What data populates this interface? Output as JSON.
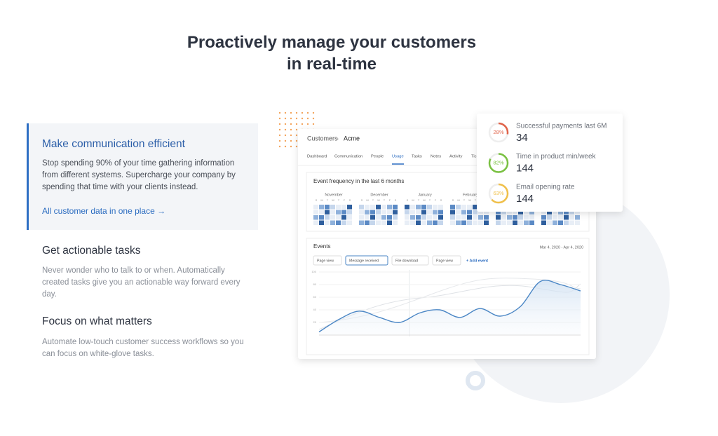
{
  "header": {
    "title_lines": [
      "Proactively manage your customers",
      "in real-time"
    ]
  },
  "features": [
    {
      "title": "Make communication efficient",
      "text": "Stop spending 90% of your time gathering information from different systems. Supercharge your company by spending that time with your clients instead.",
      "link": "All customer data in one place →"
    },
    {
      "title": "Get actionable tasks",
      "text": "Never wonder who to talk to or when. Automatically created tasks give you an actionable way forward every day."
    },
    {
      "title": "Focus on what matters",
      "text": "Automate low-touch customer success workflows so you can focus on white-glove tasks."
    }
  ],
  "dashboard": {
    "breadcrumb": [
      "Customers",
      "›",
      "Acme"
    ],
    "tabs": [
      "Dashboard",
      "Communication",
      "People",
      "Usage",
      "Tasks",
      "Notes",
      "Activity",
      "Tic"
    ],
    "heatmap": {
      "title": "Event frequency in the last 6 months",
      "months": [
        "November",
        "December",
        "January",
        "February"
      ],
      "days": [
        "S",
        "M",
        "T",
        "W",
        "T",
        "F",
        "S"
      ]
    },
    "events": {
      "title": "Events",
      "date_range": "Mar 4, 2020 - Apr 4, 2020",
      "chips": [
        "Page view",
        "Message received",
        "File download",
        "Page view"
      ],
      "add": "+ Add event",
      "chart_data": {
        "type": "line",
        "ylim": [
          0,
          100
        ],
        "yticks": [
          20,
          40,
          60,
          80,
          100
        ],
        "color": "#4a86c5",
        "values": [
          5,
          25,
          38,
          28,
          20,
          35,
          40,
          28,
          42,
          30,
          45,
          85,
          80,
          70
        ]
      }
    }
  },
  "stats": [
    {
      "label": "Successful payments last 6M",
      "value": 34,
      "percent": 28,
      "percent_label": "28%",
      "color": "#e0644a"
    },
    {
      "label": "Time in product min/week",
      "value": 144,
      "percent": 82,
      "percent_label": "82%",
      "color": "#7ac142"
    },
    {
      "label": "Email opening rate",
      "value": 144,
      "percent": 63,
      "percent_label": "63%",
      "color": "#f0c04a"
    }
  ]
}
